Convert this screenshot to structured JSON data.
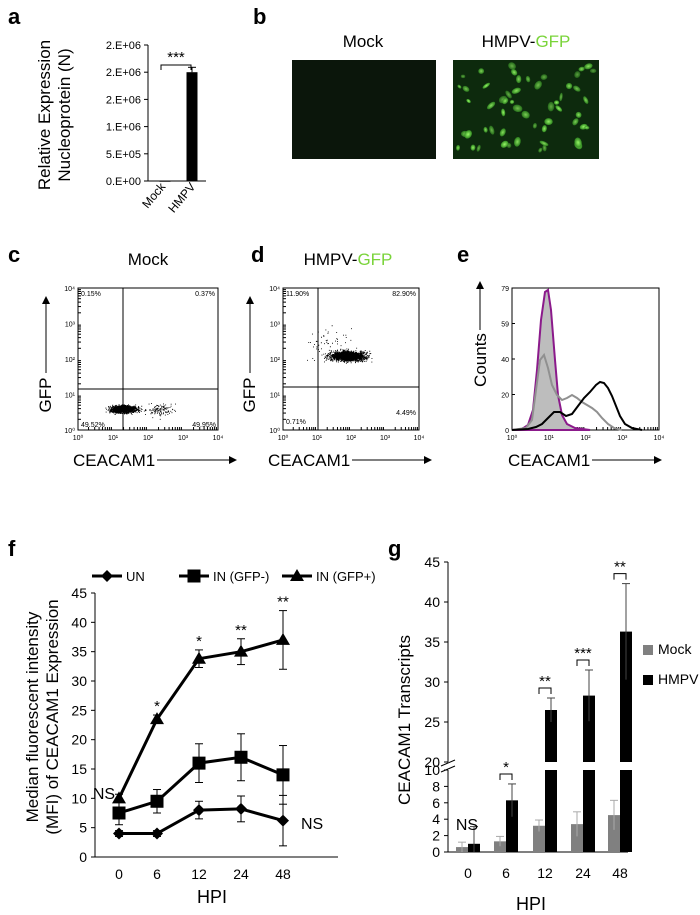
{
  "panel_labels": {
    "a": "a",
    "b": "b",
    "c": "c",
    "d": "d",
    "e": "e",
    "f": "f",
    "g": "g"
  },
  "colors": {
    "gfp_green": "#7ad43a",
    "magenta": "#8b1a8b",
    "gray": "#808080",
    "black": "#000000",
    "mock_bar": "#808080",
    "hmpv_bar": "#000000"
  },
  "panel_a": {
    "ylabel_line1": "Relative Expression",
    "ylabel_line2": "Nucleoprotein (N)",
    "significance": "***",
    "chart_data": {
      "type": "bar",
      "categories": [
        "Mock",
        "HMPV"
      ],
      "values": [
        5000,
        2000000
      ],
      "errors": [
        0,
        90000
      ],
      "ylim": [
        0,
        2500000
      ],
      "yticks": [
        0,
        500000,
        1000000,
        1500000,
        2000000,
        2500000
      ],
      "ytick_labels": [
        "0.E+00",
        "5.E+05",
        "1.E+06",
        "2.E+06",
        "2.E+06",
        "2.E+06"
      ]
    }
  },
  "panel_b": {
    "mock_title": "Mock",
    "hmpv_title_prefix": "HMPV-",
    "hmpv_title_suffix": "GFP"
  },
  "panel_c": {
    "title": "Mock",
    "ylabel": "GFP",
    "xlabel": "CEACAM1",
    "q_ul": "0.15%",
    "q_ur": "0.37%",
    "q_ll": "49.52%",
    "q_lr": "49.95%",
    "ticks": [
      "10⁰",
      "10¹",
      "10²",
      "10³",
      "10⁴"
    ]
  },
  "panel_d": {
    "title_prefix": "HMPV-",
    "title_suffix": "GFP",
    "ylabel": "GFP",
    "xlabel": "CEACAM1",
    "q_ul": "11.90%",
    "q_ur": "82.90%",
    "q_ll": "0.71%",
    "q_lr": "4.49%",
    "ticks": [
      "10⁰",
      "10¹",
      "10²",
      "10³",
      "10⁴"
    ]
  },
  "panel_e": {
    "ylabel": "Counts",
    "xlabel": "CEACAM1",
    "yticks": [
      "0",
      "20",
      "40",
      "59",
      "79"
    ],
    "xticks": [
      "10⁰",
      "10¹",
      "10²",
      "10³",
      "10⁴"
    ]
  },
  "panel_f": {
    "ylabel_line1": "Median fluorescent intensity",
    "ylabel_line2": "(MFI) of CEACAM1 Expression",
    "xlabel": "HPI",
    "ns_left": "NS",
    "ns_right": "NS",
    "chart_data": {
      "type": "line",
      "categories": [
        "0",
        "6",
        "12",
        "24",
        "48"
      ],
      "ylim": [
        0,
        45
      ],
      "yticks": [
        0,
        5,
        10,
        15,
        20,
        25,
        30,
        35,
        40,
        45
      ],
      "series": [
        {
          "name": "UN",
          "marker": "diamond",
          "values": [
            4,
            4,
            8,
            8.2,
            6.2
          ],
          "errors": [
            0.5,
            0.5,
            1.5,
            2.2,
            4.3
          ]
        },
        {
          "name": "IN (GFP-)",
          "marker": "square",
          "values": [
            7.5,
            9.5,
            16,
            17,
            14
          ],
          "errors": [
            2,
            2,
            3.3,
            4,
            5
          ]
        },
        {
          "name": "IN (GFP+)",
          "marker": "triangle",
          "values": [
            10,
            23.5,
            33.8,
            35,
            37
          ],
          "errors": [
            0.7,
            0.7,
            1.5,
            2.2,
            5
          ]
        }
      ],
      "significance": [
        "",
        "*",
        "*",
        "**",
        "**"
      ]
    }
  },
  "panel_g": {
    "ylabel": "CEACAM1 Transcripts",
    "xlabel": "HPI",
    "ns_label": "NS",
    "chart_data": {
      "type": "bar",
      "categories": [
        "0",
        "6",
        "12",
        "24",
        "48"
      ],
      "y_axis_break": [
        10,
        20
      ],
      "yticks_lower": [
        0,
        2,
        4,
        6,
        8,
        10
      ],
      "yticks_upper": [
        20,
        25,
        30,
        35,
        40,
        45
      ],
      "series": [
        {
          "name": "Mock",
          "values": [
            0.6,
            1.3,
            3.2,
            3.4,
            4.5
          ],
          "errors": [
            0.6,
            0.6,
            0.7,
            1.5,
            1.8
          ]
        },
        {
          "name": "HMPV",
          "values": [
            1.0,
            6.3,
            26.5,
            28.3,
            36.3
          ],
          "errors": [
            2.1,
            2.0,
            1.5,
            3.2,
            6.0
          ]
        }
      ],
      "significance": [
        "",
        "*",
        "**",
        "***",
        "**"
      ]
    }
  }
}
